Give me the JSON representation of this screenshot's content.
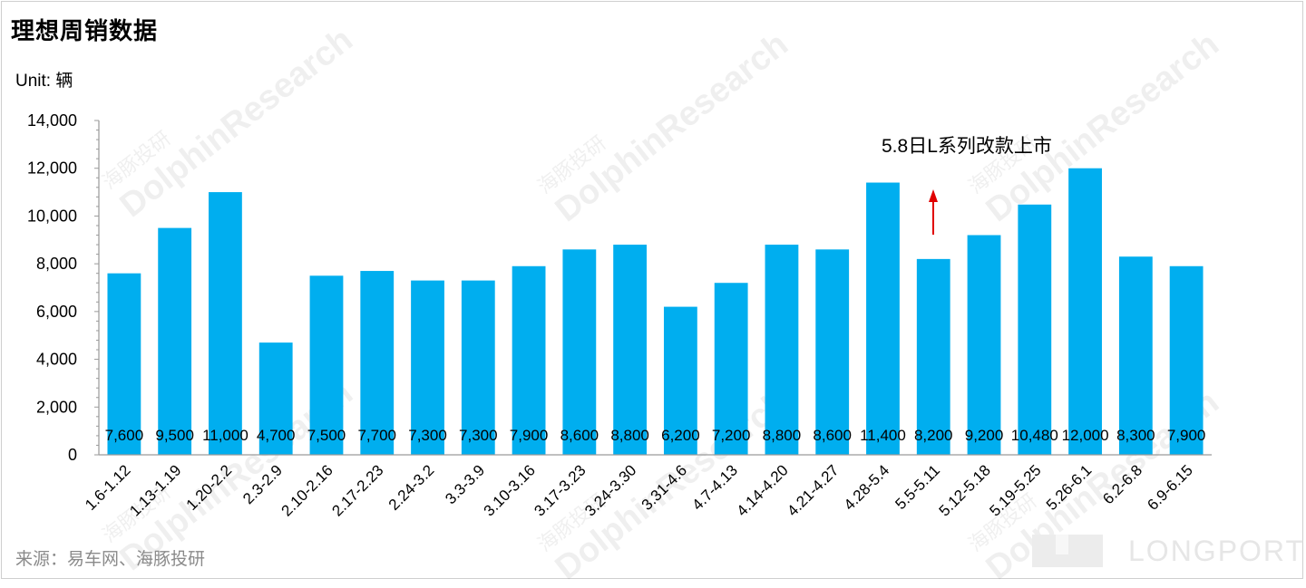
{
  "title": "理想周销数据",
  "unit_label": "Unit: 辆",
  "annotation": "5.8日L系列改款上市",
  "source": "来源：易车网、海豚投研",
  "watermark": {
    "cn": "海豚投研",
    "en": "DolphinResearch"
  },
  "logo_text": "LONGPORT",
  "colors": {
    "bar": "#00AEEF",
    "arrow": "#E00000",
    "axis": "#9a9a9a"
  },
  "chart_data": {
    "type": "bar",
    "title": "理想周销数据",
    "ylabel": "Unit: 辆",
    "ylim": [
      0,
      14000
    ],
    "yticks": [
      0,
      2000,
      4000,
      6000,
      8000,
      10000,
      12000,
      14000
    ],
    "ytick_labels": [
      "0",
      "2,000",
      "4,000",
      "6,000",
      "8,000",
      "10,000",
      "12,000",
      "14,000"
    ],
    "categories": [
      "1.6-1.12",
      "1.13-1.19",
      "1.20-2.2",
      "2.3-2.9",
      "2.10-2.16",
      "2.17-2.23",
      "2.24-3.2",
      "3.3-3.9",
      "3.10-3.16",
      "3.17-3.23",
      "3.24-3.30",
      "3.31-4.6",
      "4.7-4.13",
      "4.14-4.20",
      "4.21-4.27",
      "4.28-5.4",
      "5.5-5.11",
      "5.12-5.18",
      "5.19-5.25",
      "5.26-6.1",
      "6.2-6.8",
      "6.9-6.15"
    ],
    "values": [
      7600,
      9500,
      11000,
      4700,
      7500,
      7700,
      7300,
      7300,
      7900,
      8600,
      8800,
      6200,
      7200,
      8800,
      8600,
      11400,
      8200,
      9200,
      10480,
      12000,
      8300,
      7900
    ],
    "value_labels": [
      "7,600",
      "9,500",
      "11,000",
      "4,700",
      "7,500",
      "7,700",
      "7,300",
      "7,300",
      "7,900",
      "8,600",
      "8,800",
      "6,200",
      "7,200",
      "8,800",
      "8,600",
      "11,400",
      "8,200",
      "9,200",
      "10,480",
      "12,000",
      "8,300",
      "7,900"
    ],
    "grid": false,
    "legend": "none"
  }
}
